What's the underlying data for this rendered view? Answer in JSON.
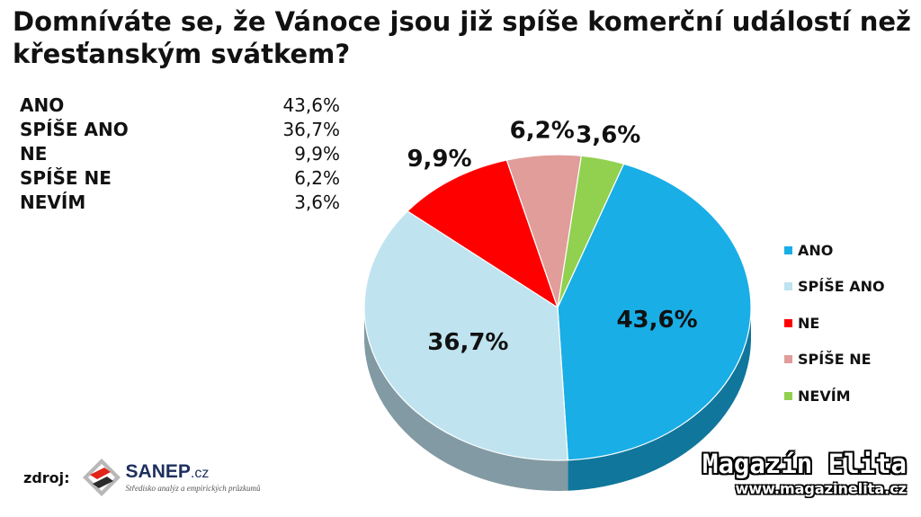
{
  "title": "Domníváte se, že Vánoce jsou již spíše komerční událostí než křesťanským svátkem?",
  "chart_data": {
    "type": "pie",
    "title": "Domníváte se, že Vánoce jsou již spíše komerční událostí než křesťanským svátkem?",
    "categories": [
      "ANO",
      "SPÍŠE ANO",
      "NE",
      "SPÍŠE NE",
      "NEVÍM"
    ],
    "values": [
      43.6,
      36.7,
      9.9,
      6.2,
      3.6
    ],
    "value_labels": [
      "43,6%",
      "36,7%",
      "9,9%",
      "6,2%",
      "3,6%"
    ],
    "colors": [
      "#19aee6",
      "#bfe3ef",
      "#ff0000",
      "#e09d9a",
      "#92d050"
    ],
    "legend_position": "right",
    "style": "3d"
  },
  "table": {
    "rows": [
      {
        "label": "ANO",
        "value": "43,6%"
      },
      {
        "label": "SPÍŠE ANO",
        "value": "36,7%"
      },
      {
        "label": "NE",
        "value": "9,9%"
      },
      {
        "label": "SPÍŠE NE",
        "value": "6,2%"
      },
      {
        "label": "NEVÍM",
        "value": "3,6%"
      }
    ]
  },
  "source": {
    "label": "zdroj:",
    "logo_name": "SANEP",
    "logo_tld": ".cz",
    "logo_subtitle": "Středisko analýz a empirických průzkumů"
  },
  "watermark": {
    "title": "Magazín Elita",
    "url": "www.magazinelita.cz"
  }
}
